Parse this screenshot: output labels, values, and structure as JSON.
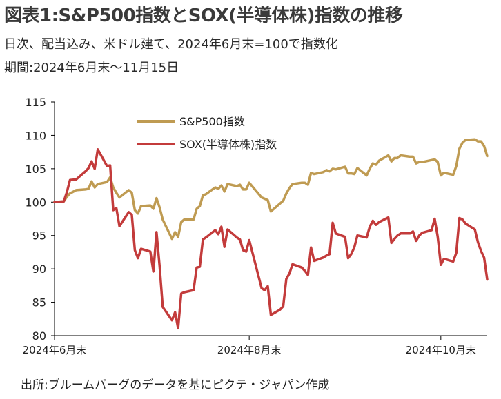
{
  "header": {
    "title": "図表1:S&P500指数とSOX(半導体株)指数の推移",
    "subtitle": "日次、配当込み、米ドル建て、2024年6月末=100で指数化",
    "period": "期間:2024年6月末〜11月15日"
  },
  "footer": {
    "source": "出所:ブルームバーグのデータを基にピクテ・ジャパン作成"
  },
  "colors": {
    "sp500": "#bf9b52",
    "sox": "#c33b3b",
    "axis": "#000000"
  },
  "chart_data": {
    "type": "line",
    "title": "",
    "xlabel": "",
    "ylabel": "",
    "ylim": [
      80,
      115
    ],
    "yticks": [
      80,
      85,
      90,
      95,
      100,
      105,
      110,
      115
    ],
    "xlim": [
      "2024-06-28",
      "2024-11-15"
    ],
    "xticks": [
      {
        "date": "2024-06-28",
        "label": "2024年6月末"
      },
      {
        "date": "2024-08-30",
        "label": "2024年8月末"
      },
      {
        "date": "2024-10-31",
        "label": "2024年10月末"
      }
    ],
    "grid": false,
    "legend": "top-left",
    "series": [
      {
        "name": "S&P500指数",
        "color": "#bf9b52",
        "points": [
          [
            "2024-06-28",
            100.0
          ],
          [
            "2024-07-01",
            100.1
          ],
          [
            "2024-07-02",
            100.8
          ],
          [
            "2024-07-03",
            101.3
          ],
          [
            "2024-07-05",
            101.8
          ],
          [
            "2024-07-08",
            101.9
          ],
          [
            "2024-07-09",
            102.0
          ],
          [
            "2024-07-10",
            103.1
          ],
          [
            "2024-07-11",
            102.2
          ],
          [
            "2024-07-12",
            102.7
          ],
          [
            "2024-07-15",
            103.0
          ],
          [
            "2024-07-16",
            103.7
          ],
          [
            "2024-07-17",
            102.2
          ],
          [
            "2024-07-18",
            101.4
          ],
          [
            "2024-07-19",
            100.7
          ],
          [
            "2024-07-22",
            101.8
          ],
          [
            "2024-07-23",
            101.4
          ],
          [
            "2024-07-24",
            98.8
          ],
          [
            "2024-07-25",
            98.3
          ],
          [
            "2024-07-26",
            99.4
          ],
          [
            "2024-07-29",
            99.5
          ],
          [
            "2024-07-30",
            99.0
          ],
          [
            "2024-07-31",
            100.6
          ],
          [
            "2024-08-01",
            99.2
          ],
          [
            "2024-08-02",
            97.4
          ],
          [
            "2024-08-05",
            94.5
          ],
          [
            "2024-08-06",
            95.5
          ],
          [
            "2024-08-07",
            94.8
          ],
          [
            "2024-08-08",
            97.0
          ],
          [
            "2024-08-09",
            97.4
          ],
          [
            "2024-08-12",
            97.4
          ],
          [
            "2024-08-13",
            99.0
          ],
          [
            "2024-08-14",
            99.4
          ],
          [
            "2024-08-15",
            101.0
          ],
          [
            "2024-08-16",
            101.2
          ],
          [
            "2024-08-19",
            102.2
          ],
          [
            "2024-08-20",
            102.0
          ],
          [
            "2024-08-21",
            102.5
          ],
          [
            "2024-08-22",
            101.6
          ],
          [
            "2024-08-23",
            102.7
          ],
          [
            "2024-08-26",
            102.4
          ],
          [
            "2024-08-27",
            102.6
          ],
          [
            "2024-08-28",
            101.9
          ],
          [
            "2024-08-29",
            101.9
          ],
          [
            "2024-08-30",
            102.9
          ],
          [
            "2024-09-03",
            100.7
          ],
          [
            "2024-09-04",
            100.5
          ],
          [
            "2024-09-05",
            100.3
          ],
          [
            "2024-09-06",
            98.6
          ],
          [
            "2024-09-09",
            99.8
          ],
          [
            "2024-09-10",
            100.2
          ],
          [
            "2024-09-11",
            101.3
          ],
          [
            "2024-09-12",
            102.1
          ],
          [
            "2024-09-13",
            102.7
          ],
          [
            "2024-09-16",
            102.9
          ],
          [
            "2024-09-17",
            102.9
          ],
          [
            "2024-09-18",
            102.6
          ],
          [
            "2024-09-19",
            104.4
          ],
          [
            "2024-09-20",
            104.2
          ],
          [
            "2024-09-23",
            104.5
          ],
          [
            "2024-09-24",
            104.8
          ],
          [
            "2024-09-25",
            104.6
          ],
          [
            "2024-09-26",
            105.0
          ],
          [
            "2024-09-27",
            104.9
          ],
          [
            "2024-09-30",
            105.3
          ],
          [
            "2024-10-01",
            104.3
          ],
          [
            "2024-10-02",
            104.3
          ],
          [
            "2024-10-03",
            104.2
          ],
          [
            "2024-10-04",
            105.1
          ],
          [
            "2024-10-07",
            104.0
          ],
          [
            "2024-10-08",
            105.0
          ],
          [
            "2024-10-09",
            105.8
          ],
          [
            "2024-10-10",
            105.6
          ],
          [
            "2024-10-11",
            106.2
          ],
          [
            "2024-10-14",
            107.0
          ],
          [
            "2024-10-15",
            106.1
          ],
          [
            "2024-10-16",
            106.6
          ],
          [
            "2024-10-17",
            106.6
          ],
          [
            "2024-10-18",
            107.0
          ],
          [
            "2024-10-21",
            106.8
          ],
          [
            "2024-10-22",
            106.8
          ],
          [
            "2024-10-23",
            105.8
          ],
          [
            "2024-10-24",
            106.0
          ],
          [
            "2024-10-25",
            106.0
          ],
          [
            "2024-10-28",
            106.3
          ],
          [
            "2024-10-29",
            106.4
          ],
          [
            "2024-10-30",
            106.0
          ],
          [
            "2024-10-31",
            104.0
          ],
          [
            "2024-11-01",
            104.4
          ],
          [
            "2024-11-04",
            104.1
          ],
          [
            "2024-11-05",
            105.4
          ],
          [
            "2024-11-06",
            108.0
          ],
          [
            "2024-11-07",
            108.9
          ],
          [
            "2024-11-08",
            109.3
          ],
          [
            "2024-11-11",
            109.4
          ],
          [
            "2024-11-12",
            109.1
          ],
          [
            "2024-11-13",
            109.1
          ],
          [
            "2024-11-14",
            108.4
          ],
          [
            "2024-11-15",
            106.9
          ]
        ]
      },
      {
        "name": "SOX(半導体株)指数",
        "color": "#c33b3b",
        "points": [
          [
            "2024-06-28",
            100.0
          ],
          [
            "2024-07-01",
            100.1
          ],
          [
            "2024-07-02",
            101.5
          ],
          [
            "2024-07-03",
            103.3
          ],
          [
            "2024-07-05",
            103.4
          ],
          [
            "2024-07-08",
            104.6
          ],
          [
            "2024-07-09",
            105.1
          ],
          [
            "2024-07-10",
            106.1
          ],
          [
            "2024-07-11",
            105.0
          ],
          [
            "2024-07-12",
            107.9
          ],
          [
            "2024-07-15",
            105.4
          ],
          [
            "2024-07-16",
            105.5
          ],
          [
            "2024-07-17",
            98.8
          ],
          [
            "2024-07-18",
            99.1
          ],
          [
            "2024-07-19",
            96.4
          ],
          [
            "2024-07-22",
            98.5
          ],
          [
            "2024-07-23",
            98.1
          ],
          [
            "2024-07-24",
            92.8
          ],
          [
            "2024-07-25",
            91.6
          ],
          [
            "2024-07-26",
            93.0
          ],
          [
            "2024-07-29",
            92.6
          ],
          [
            "2024-07-30",
            89.6
          ],
          [
            "2024-07-31",
            95.5
          ],
          [
            "2024-08-01",
            90.4
          ],
          [
            "2024-08-02",
            84.3
          ],
          [
            "2024-08-05",
            82.3
          ],
          [
            "2024-08-06",
            83.5
          ],
          [
            "2024-08-07",
            81.1
          ],
          [
            "2024-08-08",
            86.3
          ],
          [
            "2024-08-09",
            86.5
          ],
          [
            "2024-08-12",
            86.8
          ],
          [
            "2024-08-13",
            90.2
          ],
          [
            "2024-08-14",
            90.3
          ],
          [
            "2024-08-15",
            94.4
          ],
          [
            "2024-08-16",
            94.7
          ],
          [
            "2024-08-19",
            95.8
          ],
          [
            "2024-08-20",
            95.2
          ],
          [
            "2024-08-21",
            96.3
          ],
          [
            "2024-08-22",
            93.3
          ],
          [
            "2024-08-23",
            95.9
          ],
          [
            "2024-08-26",
            94.7
          ],
          [
            "2024-08-27",
            94.4
          ],
          [
            "2024-08-28",
            92.8
          ],
          [
            "2024-08-29",
            92.6
          ],
          [
            "2024-08-30",
            94.3
          ],
          [
            "2024-09-03",
            87.1
          ],
          [
            "2024-09-04",
            86.8
          ],
          [
            "2024-09-05",
            87.4
          ],
          [
            "2024-09-06",
            83.1
          ],
          [
            "2024-09-09",
            83.9
          ],
          [
            "2024-09-10",
            84.4
          ],
          [
            "2024-09-11",
            88.5
          ],
          [
            "2024-09-12",
            89.3
          ],
          [
            "2024-09-13",
            90.7
          ],
          [
            "2024-09-16",
            90.2
          ],
          [
            "2024-09-17",
            89.7
          ],
          [
            "2024-09-18",
            89.1
          ],
          [
            "2024-09-19",
            93.2
          ],
          [
            "2024-09-20",
            91.2
          ],
          [
            "2024-09-23",
            91.7
          ],
          [
            "2024-09-24",
            92.0
          ],
          [
            "2024-09-25",
            92.2
          ],
          [
            "2024-09-26",
            96.9
          ],
          [
            "2024-09-27",
            95.3
          ],
          [
            "2024-09-30",
            94.8
          ],
          [
            "2024-10-01",
            91.6
          ],
          [
            "2024-10-02",
            92.2
          ],
          [
            "2024-10-03",
            93.2
          ],
          [
            "2024-10-04",
            95.0
          ],
          [
            "2024-10-07",
            94.7
          ],
          [
            "2024-10-08",
            96.3
          ],
          [
            "2024-10-09",
            97.2
          ],
          [
            "2024-10-10",
            96.6
          ],
          [
            "2024-10-11",
            97.0
          ],
          [
            "2024-10-14",
            97.7
          ],
          [
            "2024-10-15",
            93.9
          ],
          [
            "2024-10-16",
            94.5
          ],
          [
            "2024-10-17",
            95.0
          ],
          [
            "2024-10-18",
            95.3
          ],
          [
            "2024-10-21",
            95.3
          ],
          [
            "2024-10-22",
            95.6
          ],
          [
            "2024-10-23",
            94.2
          ],
          [
            "2024-10-24",
            95.0
          ],
          [
            "2024-10-25",
            95.4
          ],
          [
            "2024-10-28",
            95.8
          ],
          [
            "2024-10-29",
            97.5
          ],
          [
            "2024-10-30",
            94.8
          ],
          [
            "2024-10-31",
            90.6
          ],
          [
            "2024-11-01",
            91.5
          ],
          [
            "2024-11-04",
            91.1
          ],
          [
            "2024-11-05",
            92.4
          ],
          [
            "2024-11-06",
            97.6
          ],
          [
            "2024-11-07",
            97.4
          ],
          [
            "2024-11-08",
            96.8
          ],
          [
            "2024-11-11",
            95.9
          ],
          [
            "2024-11-12",
            94.0
          ],
          [
            "2024-11-13",
            92.7
          ],
          [
            "2024-11-14",
            91.7
          ],
          [
            "2024-11-15",
            88.4
          ]
        ]
      }
    ]
  }
}
